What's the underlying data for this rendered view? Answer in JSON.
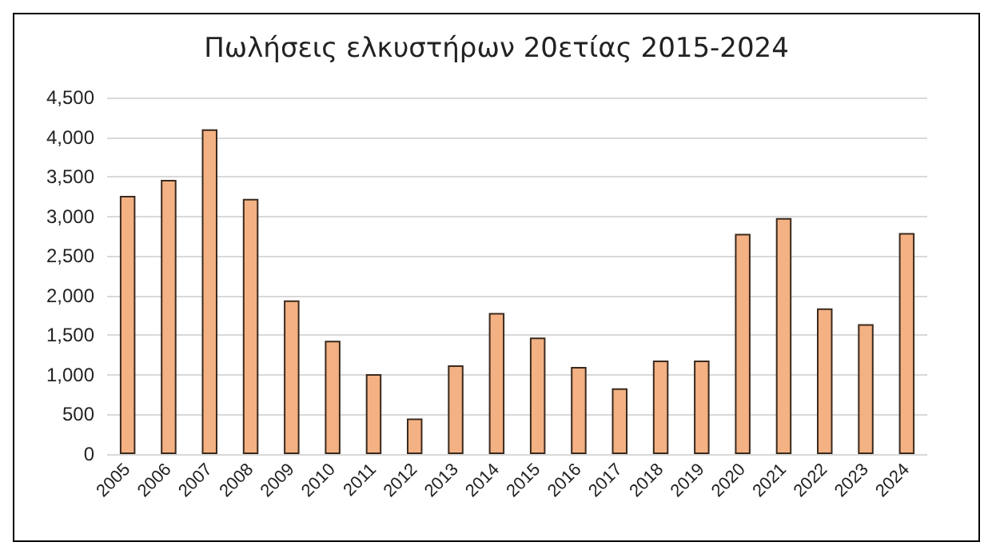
{
  "chart_data": {
    "type": "bar",
    "title": "Πωλήσεις ελκυστήρων 20ετίας 2015-2024",
    "categories": [
      "2005",
      "2006",
      "2007",
      "2008",
      "2009",
      "2010",
      "2011",
      "2012",
      "2013",
      "2014",
      "2015",
      "2016",
      "2017",
      "2018",
      "2019",
      "2020",
      "2021",
      "2022",
      "2023",
      "2024"
    ],
    "values": [
      3260,
      3460,
      4100,
      3220,
      1940,
      1430,
      1010,
      450,
      1120,
      1780,
      1470,
      1100,
      830,
      1180,
      1180,
      2780,
      2980,
      1840,
      1640,
      2790
    ],
    "color": "#f4b183",
    "ylim": [
      0,
      4500
    ],
    "yticks": [
      0,
      500,
      {
        "value": 1000,
        "label": "1,000"
      },
      {
        "value": 1500,
        "label": "1,500"
      },
      {
        "value": 2000,
        "label": "2,000"
      },
      {
        "value": 2500,
        "label": "2,500"
      },
      {
        "value": 3000,
        "label": "3,000"
      },
      {
        "value": 3500,
        "label": "3,500"
      },
      {
        "value": 4000,
        "label": "4,000"
      },
      {
        "value": 4500,
        "label": "4,500"
      }
    ],
    "grid": "y"
  }
}
